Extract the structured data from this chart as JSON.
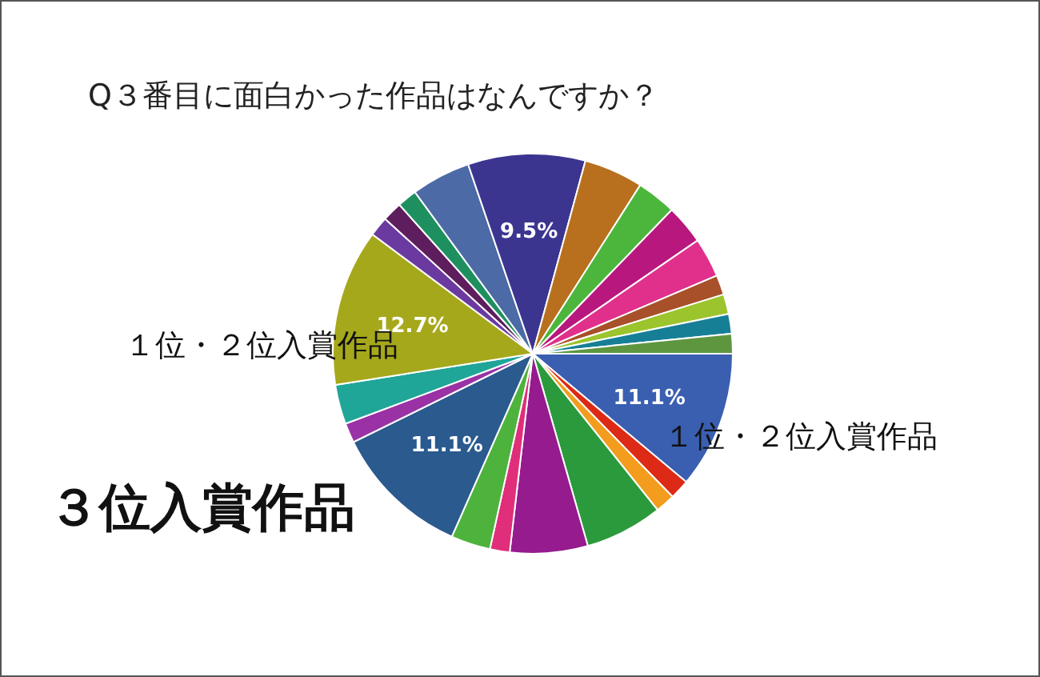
{
  "chart_data": {
    "type": "pie",
    "title": "Q３番目に面白かった作品はなんですか？",
    "categories": [
      null,
      null,
      null,
      null,
      null,
      null,
      null,
      null,
      null,
      null,
      null,
      null,
      null,
      null,
      null,
      null,
      null,
      null,
      null,
      null,
      null,
      null,
      null,
      null
    ],
    "values": [
      11.1,
      1.6,
      1.6,
      6.3,
      6.3,
      1.6,
      3.2,
      11.1,
      1.6,
      3.2,
      12.7,
      1.6,
      1.6,
      1.6,
      4.8,
      9.5,
      4.8,
      3.2,
      3.2,
      3.2,
      1.6,
      1.6,
      1.6,
      1.6
    ],
    "colors": [
      "#3a5fb0",
      "#dc2a16",
      "#f39c1e",
      "#2b9a3c",
      "#951b8e",
      "#e02e7a",
      "#4eb33c",
      "#2a5a8e",
      "#9a32a6",
      "#1fa698",
      "#a6a81c",
      "#6a3aa0",
      "#5e1e5e",
      "#1e9060",
      "#4c6aa6",
      "#3c3590",
      "#b8701e",
      "#4cb63c",
      "#b8177e",
      "#e0308c",
      "#a8502a",
      "#9cc42c",
      "#167f96",
      "#5e9640"
    ],
    "value_labels": [
      "11.1%",
      null,
      null,
      null,
      null,
      null,
      null,
      "11.1%",
      null,
      null,
      "12.7%",
      null,
      null,
      null,
      null,
      "9.5%",
      null,
      null,
      null,
      null,
      null,
      null,
      null,
      null
    ],
    "annotations": [
      "１位・２位入賞作品",
      "１位・２位入賞作品",
      "３位入賞作品"
    ]
  }
}
